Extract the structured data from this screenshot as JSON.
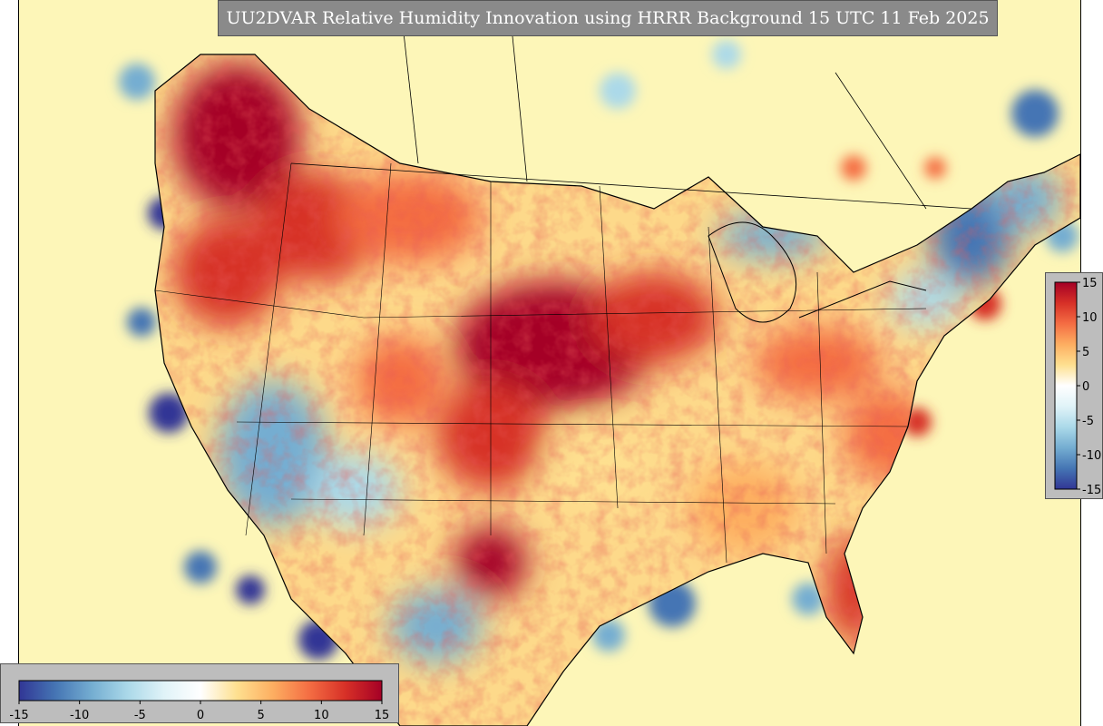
{
  "title": "UU2DVAR Relative Humidity Innovation using HRRR Background 15 UTC 11 Feb 2025",
  "colorbar": {
    "min": -15,
    "max": 15,
    "colors": [
      "#313695",
      "#4575b4",
      "#74add1",
      "#abd9e9",
      "#e0f3f8",
      "#ffffff",
      "#fee090",
      "#fdae61",
      "#f46d43",
      "#d73027",
      "#a50026"
    ],
    "vertical_ticks": [
      "15",
      "10",
      "5",
      "0",
      "-5",
      "-10",
      "-15"
    ],
    "horizontal_ticks": [
      "-15",
      "-10",
      "-5",
      "0",
      "5",
      "10",
      "15"
    ]
  },
  "map": {
    "region": "Continental United States",
    "background_color": "#fdf6b8",
    "boundary_color": "#000000"
  }
}
